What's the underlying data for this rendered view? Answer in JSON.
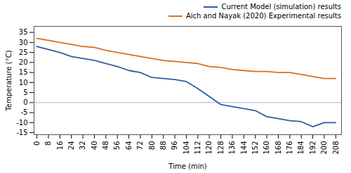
{
  "chart_data": {
    "type": "line",
    "x": [
      0,
      8,
      16,
      24,
      32,
      40,
      48,
      56,
      64,
      72,
      80,
      88,
      96,
      104,
      112,
      120,
      128,
      136,
      144,
      152,
      160,
      168,
      176,
      184,
      192,
      200,
      208
    ],
    "series": [
      {
        "name": "Current Model (simulation) results",
        "color": "#2e5fa3",
        "values": [
          28,
          26.5,
          25,
          23,
          22,
          21,
          19.5,
          18,
          16,
          15,
          12.5,
          12,
          11.5,
          10.5,
          7,
          3,
          -1,
          -2,
          -3,
          -4,
          -7,
          -8,
          -9,
          -9.5,
          -12,
          -10,
          -10
        ]
      },
      {
        "name": "Aich and Nayak (2020) Experimental results",
        "color": "#d4722a",
        "values": [
          32,
          31,
          30,
          29,
          28,
          27.5,
          26,
          25,
          24,
          23,
          22,
          21,
          20.5,
          20,
          19.5,
          18,
          17.5,
          16.5,
          16,
          15.5,
          15.5,
          15,
          15,
          14,
          13,
          12,
          12
        ]
      }
    ],
    "reference_line": {
      "y": 0,
      "color": "#b0b0cc"
    },
    "x_label": "Time (min)",
    "y_label": "Temperature (°C)",
    "xlim": [
      -2,
      212
    ],
    "ylim": [
      -16,
      38
    ],
    "xticks": [
      0,
      8,
      16,
      24,
      32,
      40,
      48,
      56,
      64,
      72,
      80,
      88,
      96,
      104,
      112,
      120,
      128,
      136,
      144,
      152,
      160,
      168,
      176,
      184,
      192,
      200,
      208
    ],
    "yticks": [
      -15,
      -10,
      -5,
      0,
      5,
      10,
      15,
      20,
      25,
      30,
      35
    ],
    "grid": false,
    "legend": "upper right"
  }
}
